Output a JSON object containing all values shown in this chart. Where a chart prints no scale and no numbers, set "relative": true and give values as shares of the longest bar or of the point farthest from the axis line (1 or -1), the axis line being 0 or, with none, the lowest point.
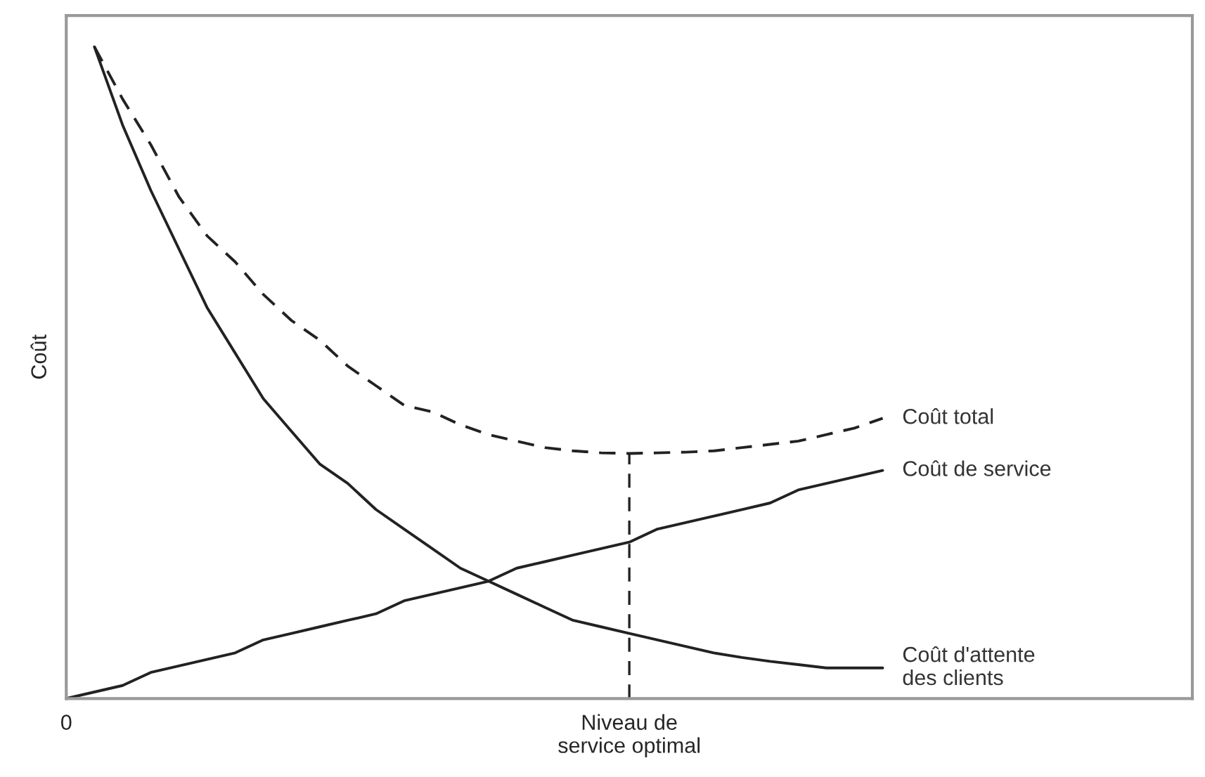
{
  "chart_data": {
    "type": "line",
    "relative": true,
    "ylabel": "Coût",
    "tick_labels": "x",
    "grid": false,
    "legend": false,
    "categories": [
      "0",
      null,
      null,
      null,
      null,
      null,
      null,
      null,
      null,
      null,
      null,
      null,
      null,
      null,
      null,
      null,
      null,
      null,
      null,
      null,
      "Niveau de\nservice optimal",
      null,
      null,
      null,
      null,
      null,
      null,
      null,
      null,
      null,
      null,
      null,
      null,
      null,
      null,
      null,
      null,
      null,
      null,
      null,
      null
    ],
    "ref_lines": [
      {
        "axis": "x",
        "value": "Niveau de\nservice optimal",
        "line_style": "dashed",
        "color": "#222222"
      }
    ],
    "series": [
      {
        "name": "Coût total",
        "color": "#222222",
        "line_style": "dashed",
        "values": [
          null,
          1.0,
          0.92,
          0.85,
          0.77,
          0.71,
          0.67,
          0.62,
          0.58,
          0.55,
          0.51,
          0.48,
          0.45,
          0.44,
          0.42,
          0.405,
          0.395,
          0.385,
          0.38,
          0.377,
          0.376,
          0.377,
          0.378,
          0.38,
          0.385,
          0.39,
          0.395,
          0.405,
          0.415,
          0.43,
          null,
          null,
          null,
          null,
          null,
          null,
          null,
          null,
          null,
          null,
          null
        ]
      },
      {
        "name": "Coût de service",
        "color": "#222222",
        "line_style": "solid",
        "values": [
          0,
          0.01,
          0.02,
          0.04,
          0.05,
          0.06,
          0.07,
          0.09,
          0.1,
          0.11,
          0.12,
          0.13,
          0.15,
          0.16,
          0.17,
          0.18,
          0.2,
          0.21,
          0.22,
          0.23,
          0.24,
          0.26,
          0.27,
          0.28,
          0.29,
          0.3,
          0.32,
          0.33,
          0.34,
          0.35,
          null,
          null,
          null,
          null,
          null,
          null,
          null,
          null,
          null,
          null,
          null
        ]
      },
      {
        "name": "Coût d'attente\ndes clients",
        "color": "#222222",
        "line_style": "solid",
        "values": [
          null,
          1.0,
          0.88,
          0.78,
          0.69,
          0.6,
          0.53,
          0.46,
          0.41,
          0.36,
          0.33,
          0.29,
          0.26,
          0.23,
          0.2,
          0.18,
          0.16,
          0.14,
          0.12,
          0.11,
          0.1,
          0.09,
          0.08,
          0.07,
          0.063,
          0.057,
          0.052,
          0.047,
          0.047,
          0.047,
          null,
          null,
          null,
          null,
          null,
          null,
          null,
          null,
          null,
          null,
          null
        ]
      }
    ]
  }
}
